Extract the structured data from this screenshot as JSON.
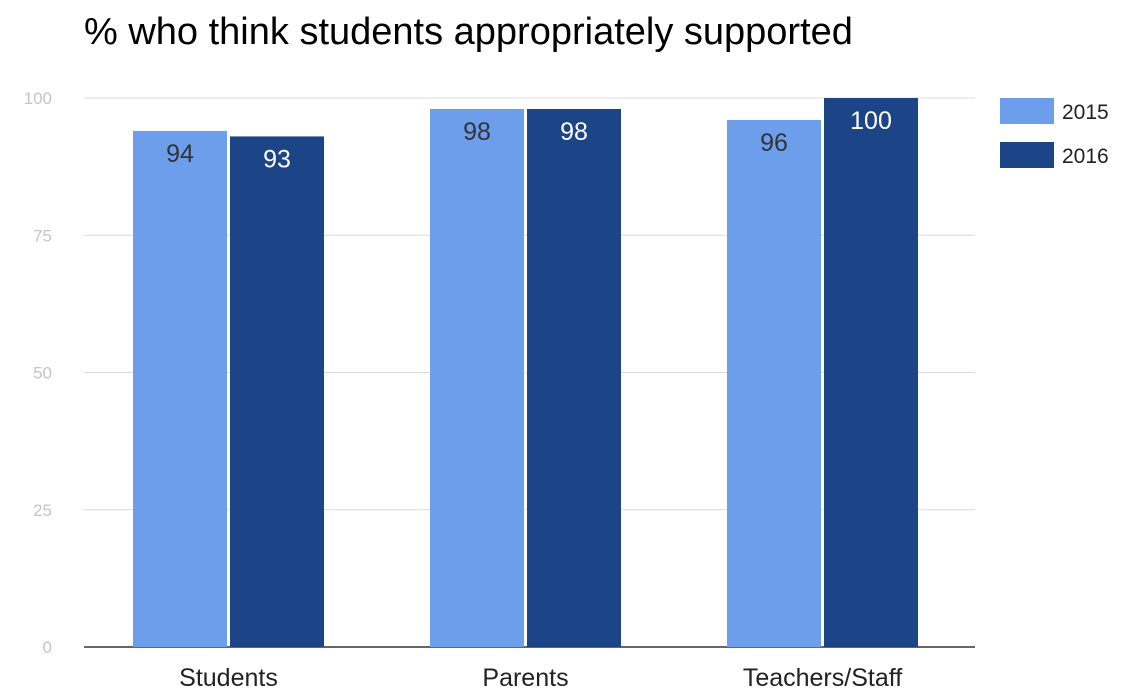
{
  "chart_data": {
    "type": "bar",
    "title": "% who think students appropriately supported",
    "categories": [
      "Students",
      "Parents",
      "Teachers/Staff"
    ],
    "series": [
      {
        "name": "2015",
        "values": [
          94,
          98,
          96
        ],
        "color": "#6d9eeb",
        "label_color": "#333333"
      },
      {
        "name": "2016",
        "values": [
          93,
          98,
          100
        ],
        "color": "#1c4587",
        "label_color": "#ffffff"
      }
    ],
    "xlabel": "",
    "ylabel": "",
    "ylim": [
      0,
      100
    ],
    "yticks": [
      0,
      25,
      50,
      75,
      100
    ],
    "grid": true,
    "legend_position": "right"
  }
}
